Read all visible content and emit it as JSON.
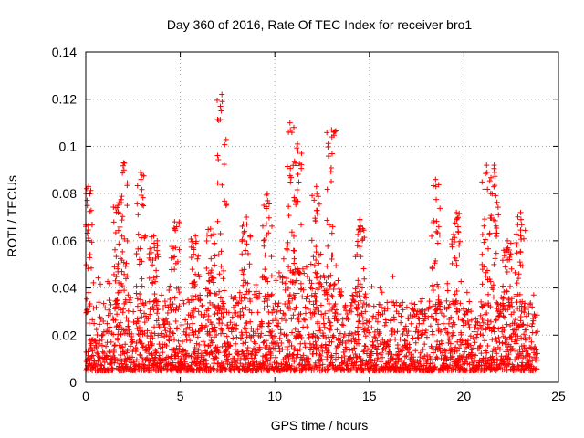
{
  "chart_data": {
    "type": "scatter",
    "title": "Day 360 of 2016, Rate Of TEC Index for receiver bro1",
    "xlabel": "GPS time / hours",
    "ylabel": "ROTI / TECUs",
    "xlim": [
      0,
      25
    ],
    "ylim": [
      0,
      0.14
    ],
    "x_ticks": [
      "0",
      "5",
      "10",
      "15",
      "20",
      "25"
    ],
    "y_ticks": [
      "0",
      "0.02",
      "0.04",
      "0.06",
      "0.08",
      "0.1",
      "0.12",
      "0.14"
    ],
    "grid": true,
    "marker": "+",
    "color": "#ff0000",
    "x_range_of_data": [
      0,
      23.9
    ],
    "typical_y_range": [
      0.005,
      0.035
    ],
    "bursts": [
      {
        "x": 0.15,
        "y": 0.083
      },
      {
        "x": 1.7,
        "y": 0.075
      },
      {
        "x": 2.0,
        "y": 0.093
      },
      {
        "x": 2.9,
        "y": 0.089
      },
      {
        "x": 3.6,
        "y": 0.062
      },
      {
        "x": 4.7,
        "y": 0.068
      },
      {
        "x": 5.8,
        "y": 0.062
      },
      {
        "x": 6.6,
        "y": 0.065
      },
      {
        "x": 7.2,
        "y": 0.122
      },
      {
        "x": 8.5,
        "y": 0.07
      },
      {
        "x": 9.6,
        "y": 0.08
      },
      {
        "x": 10.8,
        "y": 0.11
      },
      {
        "x": 11.2,
        "y": 0.101
      },
      {
        "x": 12.2,
        "y": 0.083
      },
      {
        "x": 13.0,
        "y": 0.107
      },
      {
        "x": 14.5,
        "y": 0.069
      },
      {
        "x": 18.5,
        "y": 0.086
      },
      {
        "x": 19.6,
        "y": 0.072
      },
      {
        "x": 21.2,
        "y": 0.092
      },
      {
        "x": 21.6,
        "y": 0.092
      },
      {
        "x": 22.3,
        "y": 0.06
      },
      {
        "x": 23.0,
        "y": 0.072
      }
    ]
  }
}
